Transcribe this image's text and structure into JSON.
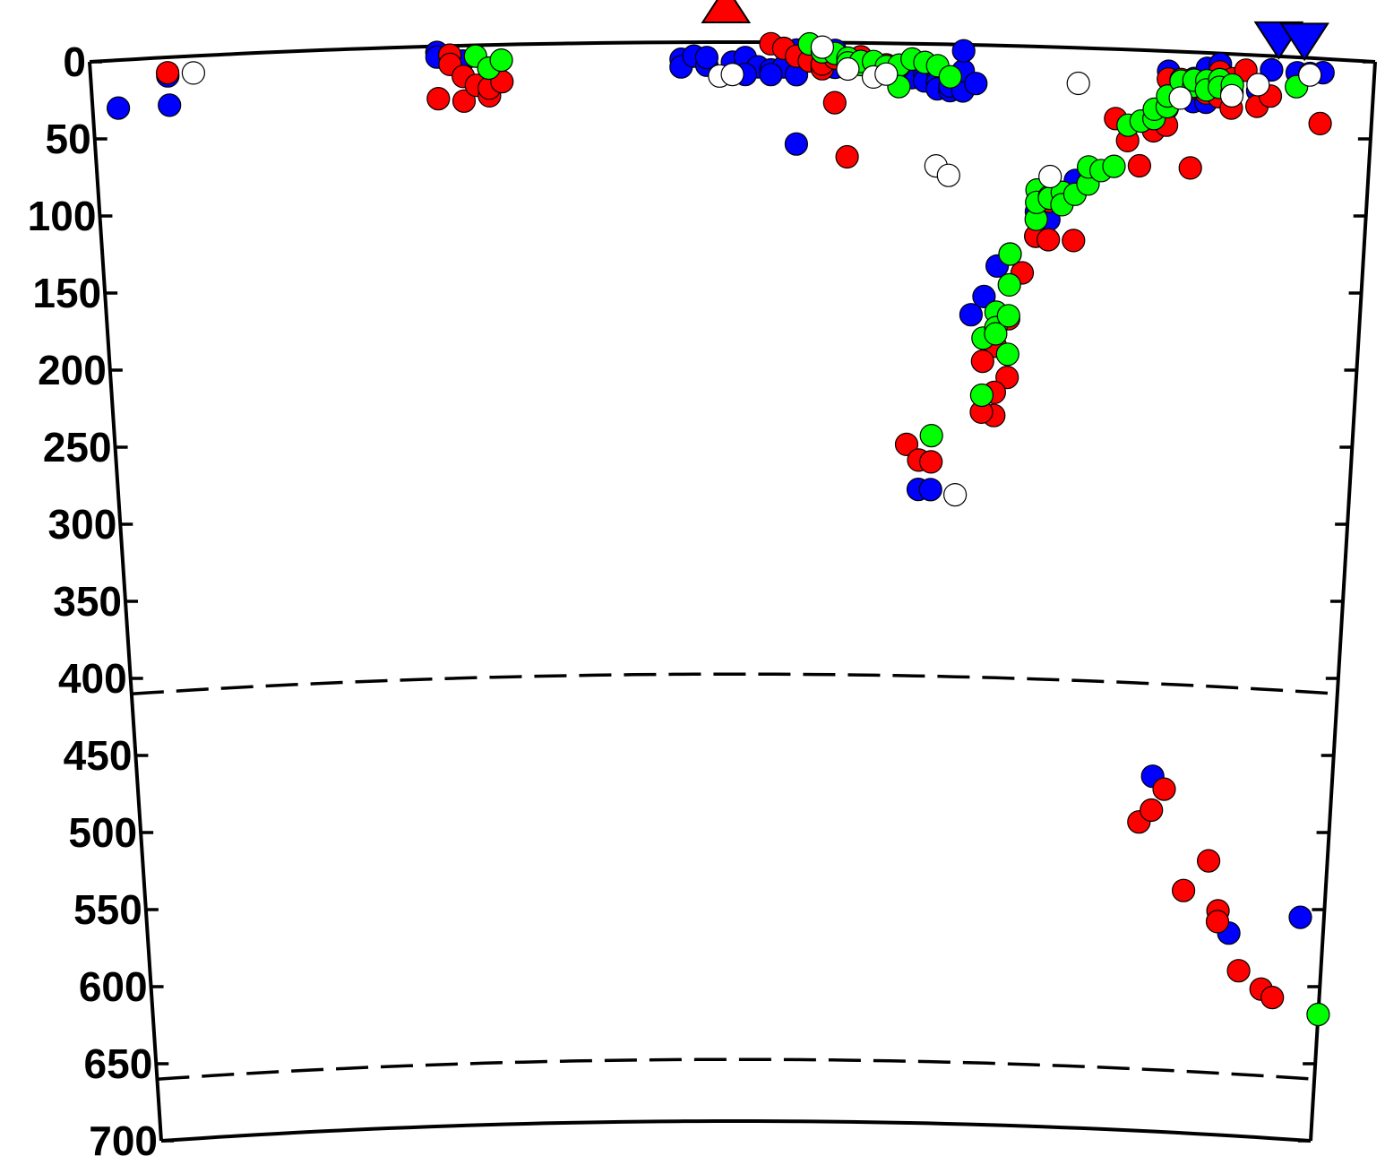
{
  "chart_data": {
    "type": "scatter",
    "title": "",
    "xlabel": "",
    "ylabel": "",
    "ylim": [
      0,
      700
    ],
    "y_inverted": true,
    "y_ticks": [
      "0",
      "50",
      "100",
      "150",
      "200",
      "250",
      "300",
      "350",
      "400",
      "450",
      "500",
      "550",
      "600",
      "650",
      "700"
    ],
    "x_range": [
      0,
      100
    ],
    "grid": false,
    "legend": "none",
    "discontinuities": [
      {
        "depth": 410,
        "style": "dashed"
      },
      {
        "depth": 660,
        "style": "dashed"
      }
    ],
    "surface_markers": [
      {
        "symbol": "triangle-up",
        "color": "#ff0000",
        "x": 49.5
      },
      {
        "symbol": "triangle-down",
        "color": "#0000ff",
        "x": 92.5
      },
      {
        "symbol": "triangle-down",
        "color": "#0000ff",
        "x": 94.5
      }
    ],
    "series": [
      {
        "color": "#0000ff",
        "points": [
          [
            2,
            31
          ],
          [
            6,
            12
          ],
          [
            6,
            31
          ],
          [
            27,
            4
          ],
          [
            27,
            7
          ],
          [
            28,
            6
          ],
          [
            29,
            10
          ],
          [
            50,
            13
          ],
          [
            51,
            10
          ],
          [
            52,
            16
          ],
          [
            51,
            21
          ],
          [
            53,
            18
          ],
          [
            56,
            12
          ],
          [
            58,
            11
          ],
          [
            46,
            11
          ],
          [
            46,
            16
          ],
          [
            47,
            9
          ],
          [
            48,
            15
          ],
          [
            48,
            10
          ],
          [
            54,
            4
          ],
          [
            55,
            5
          ],
          [
            54,
            16
          ],
          [
            53,
            21
          ],
          [
            55,
            21
          ],
          [
            58,
            5
          ],
          [
            58,
            16
          ],
          [
            59,
            16
          ],
          [
            55,
            66
          ],
          [
            64,
            22
          ],
          [
            65,
            20
          ],
          [
            65,
            20
          ],
          [
            65,
            24
          ],
          [
            66,
            18
          ],
          [
            66,
            25
          ],
          [
            66,
            29
          ],
          [
            67,
            30
          ],
          [
            67,
            27
          ],
          [
            68,
            22
          ],
          [
            68,
            30
          ],
          [
            68,
            17
          ],
          [
            69,
            25
          ],
          [
            68,
            4
          ],
          [
            71,
            143
          ],
          [
            70,
            163
          ],
          [
            69,
            175
          ],
          [
            74,
            123
          ],
          [
            74,
            107
          ],
          [
            75,
            112
          ],
          [
            77,
            86
          ],
          [
            84,
            13
          ],
          [
            84,
            37
          ],
          [
            85,
            19
          ],
          [
            86,
            22
          ],
          [
            86,
            32
          ],
          [
            87,
            32
          ],
          [
            86,
            17
          ],
          [
            85,
            19
          ],
          [
            87,
            16
          ],
          [
            88,
            14
          ],
          [
            87,
            15
          ],
          [
            88,
            26
          ],
          [
            87,
            10
          ],
          [
            88,
            7
          ],
          [
            92,
            9
          ],
          [
            91,
            23
          ],
          [
            94,
            10
          ],
          [
            95,
            10
          ],
          [
            96,
            9
          ],
          [
            65,
            289
          ],
          [
            66,
            289
          ],
          [
            85,
            470
          ],
          [
            92,
            569
          ],
          [
            98,
            556
          ]
        ]
      },
      {
        "color": "#ff0000",
        "points": [
          [
            6,
            10
          ],
          [
            27,
            34
          ],
          [
            28,
            6
          ],
          [
            28,
            12
          ],
          [
            29,
            20
          ],
          [
            29,
            36
          ],
          [
            30,
            26
          ],
          [
            31,
            33
          ],
          [
            31,
            28
          ],
          [
            32,
            24
          ],
          [
            53,
            1
          ],
          [
            54,
            4
          ],
          [
            55,
            9
          ],
          [
            56,
            12
          ],
          [
            57,
            17
          ],
          [
            57,
            14
          ],
          [
            58,
            10
          ],
          [
            58,
            39
          ],
          [
            59,
            74
          ],
          [
            60,
            9
          ],
          [
            61,
            17
          ],
          [
            62,
            14
          ],
          [
            63,
            15
          ],
          [
            80,
            45
          ],
          [
            81,
            59
          ],
          [
            82,
            75
          ],
          [
            83,
            52
          ],
          [
            84,
            48
          ],
          [
            84,
            18
          ],
          [
            85,
            18
          ],
          [
            86,
            21
          ],
          [
            86,
            23
          ],
          [
            86,
            75
          ],
          [
            87,
            26
          ],
          [
            87,
            20
          ],
          [
            88,
            28
          ],
          [
            88,
            12
          ],
          [
            89,
            16
          ],
          [
            89,
            35
          ],
          [
            90,
            10
          ],
          [
            91,
            33
          ],
          [
            92,
            26
          ],
          [
            96,
            42
          ],
          [
            72,
            135
          ],
          [
            73,
            147
          ],
          [
            72,
            177
          ],
          [
            71,
            195
          ],
          [
            70,
            205
          ],
          [
            72,
            215
          ],
          [
            71,
            225
          ],
          [
            71,
            240
          ],
          [
            70,
            238
          ],
          [
            74,
            123
          ],
          [
            75,
            125
          ],
          [
            75,
            100
          ],
          [
            76,
            95
          ],
          [
            77,
            125
          ],
          [
            64,
            260
          ],
          [
            65,
            270
          ],
          [
            66,
            271
          ],
          [
            84,
            500
          ],
          [
            85,
            492
          ],
          [
            86,
            478
          ],
          [
            88,
            543
          ],
          [
            90,
            523
          ],
          [
            91,
            555
          ],
          [
            91,
            562
          ],
          [
            93,
            593
          ],
          [
            95,
            604
          ],
          [
            96,
            609
          ]
        ]
      },
      {
        "color": "#00ff00",
        "points": [
          [
            30,
            7
          ],
          [
            31,
            15
          ],
          [
            32,
            10
          ],
          [
            56,
            1
          ],
          [
            57,
            6
          ],
          [
            58,
            7
          ],
          [
            59,
            10
          ],
          [
            59,
            13
          ],
          [
            60,
            14
          ],
          [
            60,
            12
          ],
          [
            61,
            12
          ],
          [
            62,
            15
          ],
          [
            63,
            14
          ],
          [
            64,
            10
          ],
          [
            65,
            12
          ],
          [
            66,
            14
          ],
          [
            63,
            28
          ],
          [
            67,
            21
          ],
          [
            66,
            254
          ],
          [
            70,
            190
          ],
          [
            70,
            227
          ],
          [
            71,
            173
          ],
          [
            71,
            183
          ],
          [
            71,
            187
          ],
          [
            72,
            175
          ],
          [
            72,
            200
          ],
          [
            72,
            135
          ],
          [
            72,
            155
          ],
          [
            74,
            112
          ],
          [
            74,
            93
          ],
          [
            74,
            101
          ],
          [
            75,
            97
          ],
          [
            75,
            98
          ],
          [
            76,
            94
          ],
          [
            76,
            102
          ],
          [
            77,
            95
          ],
          [
            78,
            88
          ],
          [
            78,
            77
          ],
          [
            79,
            79
          ],
          [
            80,
            76
          ],
          [
            81,
            49
          ],
          [
            82,
            46
          ],
          [
            83,
            44
          ],
          [
            83,
            38
          ],
          [
            84,
            36
          ],
          [
            84,
            29
          ],
          [
            85,
            19
          ],
          [
            86,
            22
          ],
          [
            86,
            18
          ],
          [
            87,
            18
          ],
          [
            87,
            24
          ],
          [
            88,
            17
          ],
          [
            88,
            22
          ],
          [
            89,
            25
          ],
          [
            89,
            20
          ],
          [
            94,
            19
          ],
          [
            100,
            618
          ]
        ]
      },
      {
        "color": "#ffffff",
        "points": [
          [
            8,
            11
          ],
          [
            49,
            22
          ],
          [
            50,
            21
          ],
          [
            57,
            3
          ],
          [
            59,
            17
          ],
          [
            61,
            22
          ],
          [
            62,
            20
          ],
          [
            66,
            79
          ],
          [
            67,
            85
          ],
          [
            68,
            292
          ],
          [
            75,
            84
          ],
          [
            77,
            23
          ],
          [
            85,
            30
          ],
          [
            89,
            27
          ],
          [
            91,
            19
          ],
          [
            95,
            11
          ]
        ]
      }
    ]
  }
}
